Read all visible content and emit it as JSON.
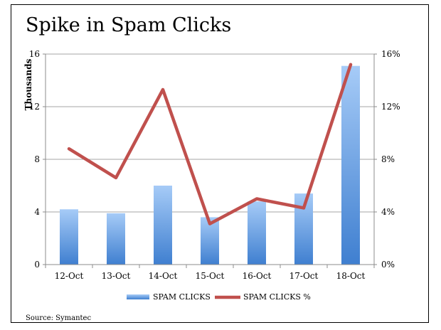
{
  "chart_data": {
    "type": "bar",
    "title": "Spike in Spam Clicks",
    "ylabel": "Thousands",
    "y2label": "",
    "xlabel": "",
    "categories": [
      "12-Oct",
      "13-Oct",
      "14-Oct",
      "15-Oct",
      "16-Oct",
      "17-Oct",
      "18-Oct"
    ],
    "series": [
      {
        "name": "SPAM CLICKS",
        "type": "bar",
        "axis": "left",
        "values": [
          4.2,
          3.9,
          6.0,
          3.6,
          4.8,
          5.4,
          15.1
        ]
      },
      {
        "name": "SPAM CLICKS %",
        "type": "line",
        "axis": "right",
        "values": [
          8.8,
          6.6,
          13.3,
          3.1,
          5.0,
          4.3,
          15.2
        ]
      }
    ],
    "ylim": [
      0,
      16
    ],
    "yticks": [
      "0",
      "4",
      "8",
      "12",
      "16"
    ],
    "y2lim": [
      0,
      16
    ],
    "y2ticks": [
      "0%",
      "4%",
      "8%",
      "12%",
      "16%"
    ],
    "grid": true,
    "legend": "bottom",
    "source": "Source: Symantec",
    "colors": {
      "bar_top": "#a6cbf7",
      "bar_bottom": "#3f7fd0",
      "line": "#c0504d",
      "grid": "#a6a6a6",
      "axis": "#8c8c8c"
    }
  }
}
